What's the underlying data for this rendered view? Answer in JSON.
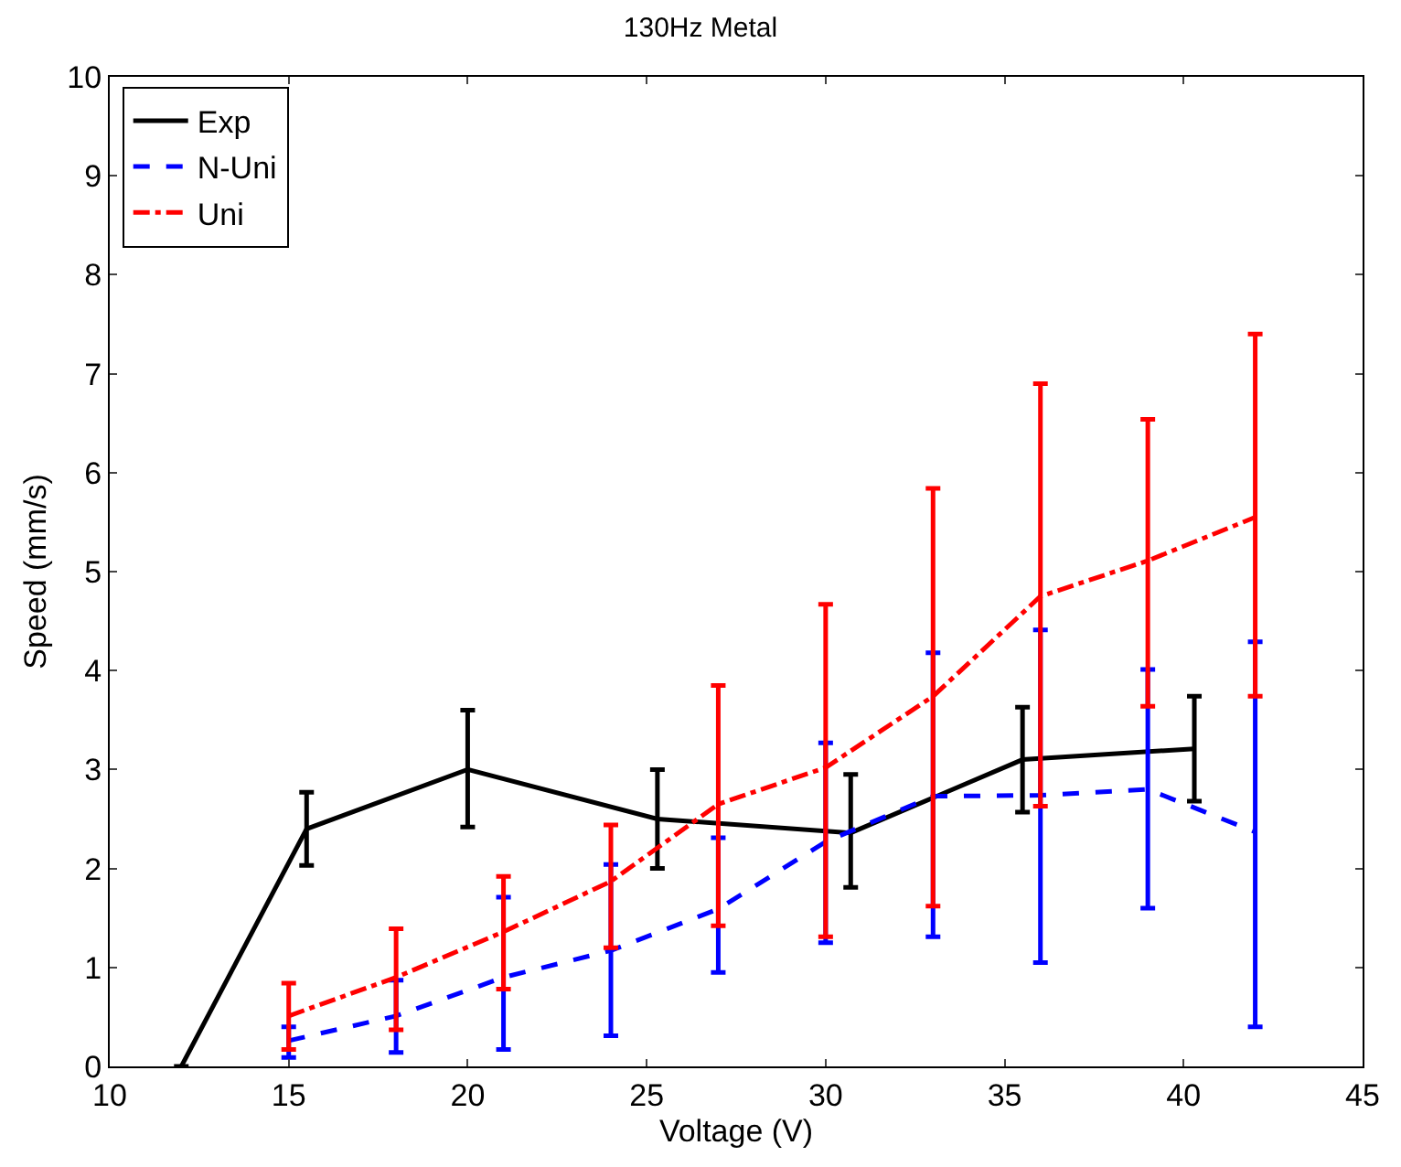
{
  "chart_data": {
    "type": "line",
    "title": "130Hz Metal",
    "xlabel": "Voltage (V)",
    "ylabel": "Speed (mm/s)",
    "xlim": [
      10,
      45
    ],
    "xticks": [
      10,
      15,
      20,
      25,
      30,
      35,
      40,
      45
    ],
    "ylim": [
      0,
      10
    ],
    "yticks": [
      0,
      1,
      2,
      3,
      4,
      5,
      6,
      7,
      8,
      9,
      10
    ],
    "legend": "top left",
    "marker": "none",
    "series": [
      {
        "name": "Exp",
        "color": "#000000",
        "line_style": "solid",
        "x": [
          12,
          15.5,
          20,
          25.3,
          30.7,
          35.5,
          40.3
        ],
        "values": [
          0,
          2.4,
          3.0,
          2.5,
          2.36,
          3.1,
          3.21
        ],
        "errors": [
          null,
          [
            2.03,
            2.77
          ],
          [
            2.42,
            3.6
          ],
          [
            2.0,
            3.0
          ],
          [
            1.81,
            2.95
          ],
          [
            2.57,
            3.63
          ],
          [
            2.68,
            3.74
          ]
        ]
      },
      {
        "name": "N-Uni",
        "color": "#0000ff",
        "line_style": "dashed",
        "x": [
          15,
          18,
          21,
          24,
          27,
          30,
          33,
          36,
          39,
          42
        ],
        "values": [
          0.26,
          0.51,
          0.9,
          1.17,
          1.59,
          2.27,
          2.73,
          2.74,
          2.8,
          2.37
        ],
        "errors": [
          [
            0.09,
            0.4
          ],
          [
            0.14,
            0.87
          ],
          [
            0.17,
            1.71
          ],
          [
            0.31,
            2.04
          ],
          [
            0.95,
            2.31
          ],
          [
            1.25,
            3.27
          ],
          [
            1.31,
            4.18
          ],
          [
            1.05,
            4.41
          ],
          [
            1.6,
            4.01
          ],
          [
            0.4,
            4.29
          ]
        ]
      },
      {
        "name": "Uni",
        "color": "#ff0000",
        "line_style": "dashdot",
        "x": [
          15,
          18,
          21,
          24,
          27,
          30,
          33,
          36,
          39,
          42
        ],
        "values": [
          0.51,
          0.9,
          1.36,
          1.87,
          2.65,
          3.02,
          3.74,
          4.75,
          5.11,
          5.55
        ],
        "errors": [
          [
            0.17,
            0.84
          ],
          [
            0.37,
            1.39
          ],
          [
            0.78,
            1.92
          ],
          [
            1.2,
            2.44
          ],
          [
            1.42,
            3.85
          ],
          [
            1.31,
            4.67
          ],
          [
            1.62,
            5.84
          ],
          [
            2.63,
            6.9
          ],
          [
            3.64,
            6.54
          ],
          [
            3.74,
            7.4
          ]
        ]
      }
    ]
  }
}
